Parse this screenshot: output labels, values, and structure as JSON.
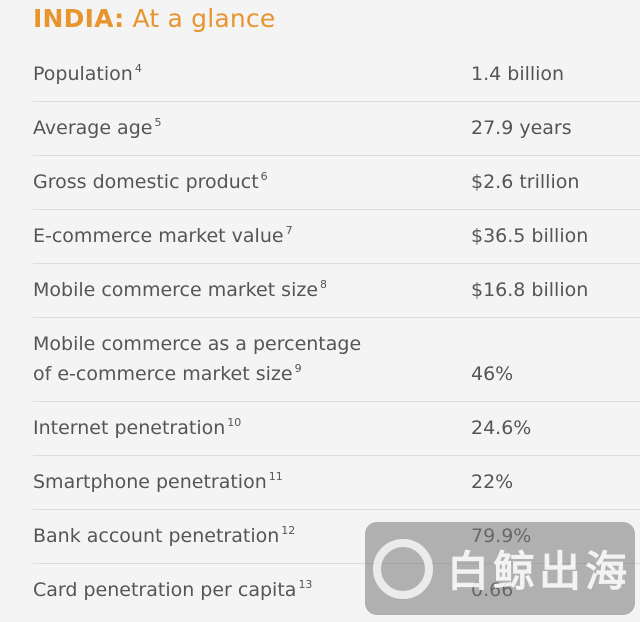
{
  "title": {
    "lead": "INDIA:",
    "text": "At a glance"
  },
  "rows": [
    {
      "label": "Population",
      "sup": "4",
      "value": "1.4 billion"
    },
    {
      "label": "Average age",
      "sup": "5",
      "value": "27.9 years"
    },
    {
      "label": "Gross domestic product",
      "sup": "6",
      "value": "$2.6 trillion"
    },
    {
      "label": "E-commerce market value",
      "sup": "7",
      "value": "$36.5 billion"
    },
    {
      "label": "Mobile commerce market size",
      "sup": "8",
      "value": "$16.8 billion"
    },
    {
      "label": "Mobile commerce as a percentage of e-commerce market size",
      "sup": "9",
      "value": "46%"
    },
    {
      "label": "Internet penetration",
      "sup": "10",
      "value": "24.6%"
    },
    {
      "label": "Smartphone penetration",
      "sup": "11",
      "value": "22%"
    },
    {
      "label": "Bank account penetration",
      "sup": "12",
      "value": "79.9%"
    },
    {
      "label": "Card penetration per capita",
      "sup": "13",
      "value": "0.66"
    }
  ],
  "watermark": "白鲸出海"
}
